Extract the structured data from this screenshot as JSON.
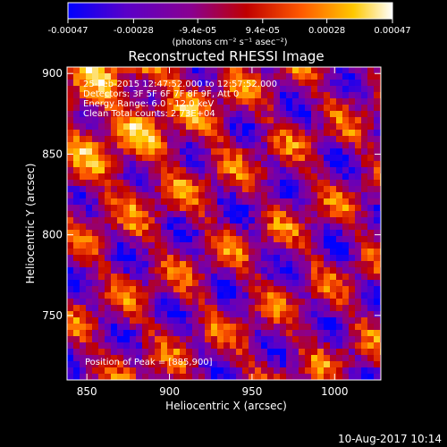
{
  "colorbar": {
    "tick_labels": [
      "-0.00047",
      "-0.00028",
      "-9.4e-05",
      "9.4e-05",
      "0.00028",
      "0.00047"
    ],
    "tick_values": [
      -0.00047,
      -0.00028,
      -9.4e-05,
      9.4e-05,
      0.00028,
      0.00047
    ],
    "range": [
      -0.00047,
      0.00047
    ],
    "units_label": "(photons cm⁻² s⁻¹ asec⁻²)",
    "colors": [
      "#0000ff",
      "#5a00c8",
      "#8a0090",
      "#c00000",
      "#ff5a00",
      "#ffc800",
      "#ffffff"
    ]
  },
  "chart_data": {
    "type": "heatmap",
    "title": "Reconstructed RHESSI Image",
    "xlabel": "Heliocentric X (arcsec)",
    "ylabel": "Heliocentric Y (arcsec)",
    "xlim": [
      838,
      1028
    ],
    "ylim": [
      710,
      904
    ],
    "x_ticks": [
      850,
      900,
      950,
      1000
    ],
    "y_ticks": [
      750,
      800,
      850,
      900
    ],
    "annotations": [
      "25-Feb-2015 12:47:52.000 to 12:57:52.000",
      "Detectors: 3F 5F 6F 7F 8F 9F, Att 0",
      "Energy Range: 6.0 - 12.0 keV",
      "Clean    Total counts: 2.73E+04"
    ],
    "peak_label": "Position of Peak = [885,900]",
    "peak": [
      885,
      900
    ],
    "grid": false,
    "colorbar_position": "top"
  },
  "footer": {
    "date": "10-Aug-2017 10:14"
  }
}
